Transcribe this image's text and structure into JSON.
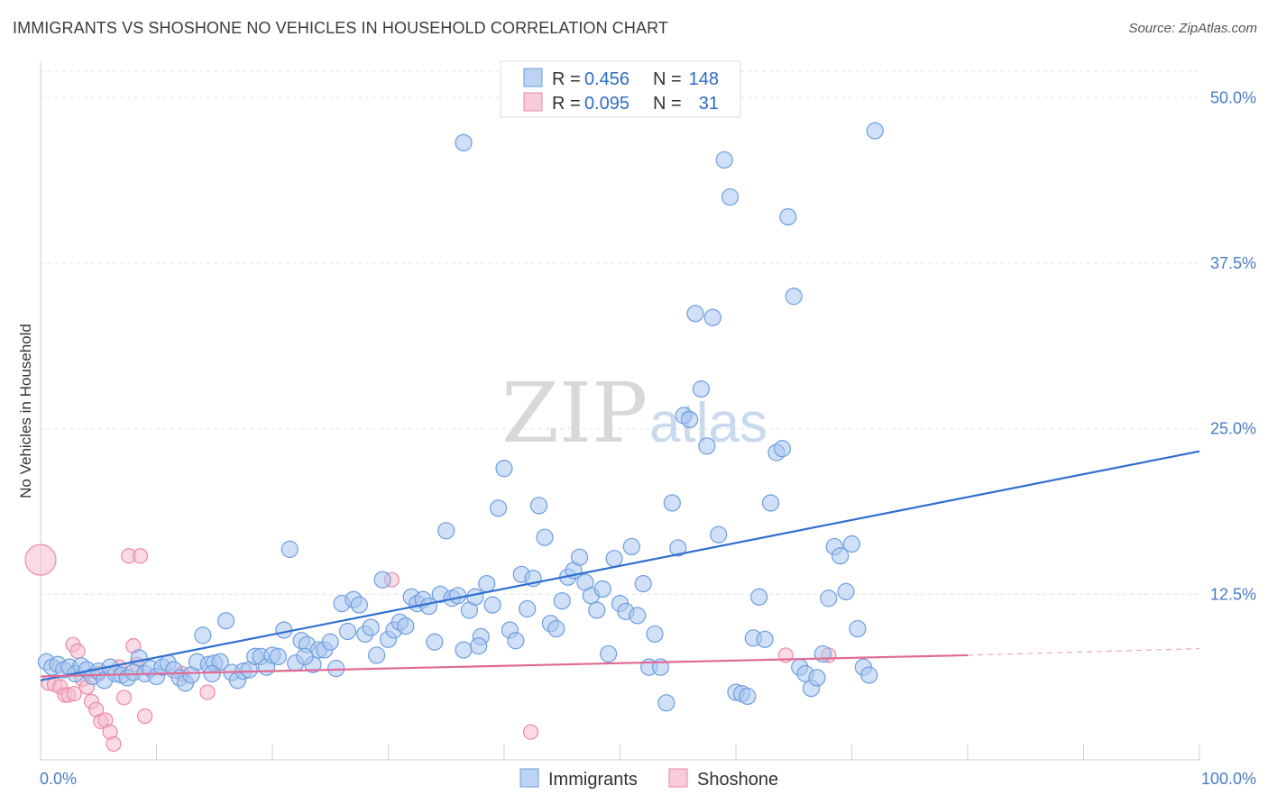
{
  "title": "IMMIGRANTS VS SHOSHONE NO VEHICLES IN HOUSEHOLD CORRELATION CHART",
  "source": "Source: ZipAtlas.com",
  "watermark": {
    "main": "ZIP",
    "sub": "atlas"
  },
  "chart_data": {
    "type": "scatter",
    "xlabel": "",
    "ylabel": "No Vehicles in Household",
    "xlim": [
      0,
      100
    ],
    "ylim": [
      0,
      52
    ],
    "x_tick_labels": [
      {
        "value": 0,
        "label": "0.0%"
      },
      {
        "value": 100,
        "label": "100.0%"
      }
    ],
    "y_ticks": [
      {
        "value": 12.5,
        "label": "12.5%"
      },
      {
        "value": 25,
        "label": "25.0%"
      },
      {
        "value": 37.5,
        "label": "37.5%"
      },
      {
        "value": 50,
        "label": "50.0%"
      }
    ],
    "grid": true,
    "legend_top": [
      {
        "series": "Immigrants",
        "r_label": "R =",
        "r": "0.456",
        "n_label": "N =",
        "n": "148"
      },
      {
        "series": "Shoshone",
        "r_label": "R =",
        "r": "0.095",
        "n_label": "N =",
        "n": "31"
      }
    ],
    "legend_bottom": [
      "Immigrants",
      "Shoshone"
    ],
    "colors": {
      "immigrants": "#a9c7ef",
      "immigrants_edge": "#6d9ee0",
      "immigrants_line": "#2f6fd0",
      "shoshone": "#f5bccd",
      "shoshone_edge": "#ea8aa8",
      "shoshone_line": "#e06a94"
    },
    "series": [
      {
        "name": "Immigrants",
        "trend": {
          "x0": 0,
          "y0": 6.0,
          "x1": 100,
          "y1": 23.3
        },
        "points": [
          [
            0.5,
            7.4
          ],
          [
            1,
            7
          ],
          [
            1.5,
            7.2
          ],
          [
            2,
            6.8
          ],
          [
            2.5,
            7
          ],
          [
            3,
            6.5
          ],
          [
            3.5,
            7.1
          ],
          [
            4,
            6.8
          ],
          [
            4.5,
            6.3
          ],
          [
            5,
            6.7
          ],
          [
            5.5,
            6
          ],
          [
            6,
            7
          ],
          [
            6.5,
            6.5
          ],
          [
            7,
            6.4
          ],
          [
            7.5,
            6.2
          ],
          [
            8,
            6.6
          ],
          [
            8.5,
            7.7
          ],
          [
            9,
            6.5
          ],
          [
            9.5,
            6.9
          ],
          [
            10,
            6.3
          ],
          [
            10.5,
            7
          ],
          [
            11,
            7.3
          ],
          [
            11.5,
            6.8
          ],
          [
            12,
            6.2
          ],
          [
            12.5,
            5.8
          ],
          [
            13,
            6.4
          ],
          [
            13.5,
            7.4
          ],
          [
            14,
            9.4
          ],
          [
            14.5,
            7.2
          ],
          [
            15,
            7.3
          ],
          [
            15.5,
            7.4
          ],
          [
            16,
            10.5
          ],
          [
            16.5,
            6.6
          ],
          [
            17,
            6
          ],
          [
            17.5,
            6.7
          ],
          [
            18,
            6.8
          ],
          [
            18.5,
            7.8
          ],
          [
            19,
            7.8
          ],
          [
            19.5,
            7
          ],
          [
            20,
            7.9
          ],
          [
            20.5,
            7.8
          ],
          [
            21,
            9.8
          ],
          [
            21.5,
            15.9
          ],
          [
            22,
            7.3
          ],
          [
            22.5,
            9
          ],
          [
            23,
            8.7
          ],
          [
            23.5,
            7.2
          ],
          [
            24,
            8.3
          ],
          [
            24.5,
            8.3
          ],
          [
            25,
            8.9
          ],
          [
            25.5,
            6.9
          ],
          [
            26,
            11.8
          ],
          [
            26.5,
            9.7
          ],
          [
            27,
            12.1
          ],
          [
            27.5,
            11.7
          ],
          [
            28,
            9.5
          ],
          [
            28.5,
            10
          ],
          [
            29,
            7.9
          ],
          [
            29.5,
            13.6
          ],
          [
            30,
            9.1
          ],
          [
            30.5,
            9.8
          ],
          [
            31,
            10.4
          ],
          [
            31.5,
            10.1
          ],
          [
            32,
            12.3
          ],
          [
            32.5,
            11.8
          ],
          [
            33,
            12.1
          ],
          [
            33.5,
            11.6
          ],
          [
            34,
            8.9
          ],
          [
            34.5,
            12.5
          ],
          [
            35,
            17.3
          ],
          [
            35.5,
            12.2
          ],
          [
            36,
            12.4
          ],
          [
            36.5,
            8.3
          ],
          [
            37,
            11.3
          ],
          [
            37.5,
            12.3
          ],
          [
            38,
            9.3
          ],
          [
            38.5,
            13.3
          ],
          [
            39,
            11.7
          ],
          [
            39.5,
            19
          ],
          [
            40,
            22
          ],
          [
            40.5,
            9.8
          ],
          [
            41,
            9
          ],
          [
            41.5,
            14
          ],
          [
            42,
            11.4
          ],
          [
            42.5,
            13.7
          ],
          [
            43,
            19.2
          ],
          [
            43.5,
            16.8
          ],
          [
            44,
            10.3
          ],
          [
            44.5,
            9.9
          ],
          [
            45,
            12
          ],
          [
            45.5,
            13.8
          ],
          [
            46,
            14.3
          ],
          [
            46.5,
            15.3
          ],
          [
            47,
            13.4
          ],
          [
            47.5,
            12.4
          ],
          [
            48,
            11.3
          ],
          [
            48.5,
            12.9
          ],
          [
            49,
            8
          ],
          [
            49.5,
            15.2
          ],
          [
            50,
            11.8
          ],
          [
            50.5,
            11.2
          ],
          [
            51,
            16.1
          ],
          [
            51.5,
            10.9
          ],
          [
            52,
            13.3
          ],
          [
            52.5,
            7
          ],
          [
            53,
            9.5
          ],
          [
            53.5,
            7
          ],
          [
            54,
            4.3
          ],
          [
            54.5,
            19.4
          ],
          [
            55,
            16
          ],
          [
            55.5,
            26
          ],
          [
            56,
            25.7
          ],
          [
            56.5,
            33.7
          ],
          [
            57,
            28
          ],
          [
            57.5,
            23.7
          ],
          [
            58,
            33.4
          ],
          [
            58.5,
            17
          ],
          [
            59,
            45.3
          ],
          [
            59.5,
            42.5
          ],
          [
            60,
            5.1
          ],
          [
            60.5,
            5
          ],
          [
            61,
            4.8
          ],
          [
            61.5,
            9.2
          ],
          [
            62,
            12.3
          ],
          [
            62.5,
            9.1
          ],
          [
            63,
            19.4
          ],
          [
            63.5,
            23.2
          ],
          [
            64,
            23.5
          ],
          [
            64.5,
            41
          ],
          [
            65,
            35
          ],
          [
            65.5,
            7
          ],
          [
            66,
            6.5
          ],
          [
            66.5,
            5.4
          ],
          [
            67,
            6.2
          ],
          [
            67.5,
            8
          ],
          [
            68,
            12.2
          ],
          [
            68.5,
            16.1
          ],
          [
            69,
            15.4
          ],
          [
            69.5,
            12.7
          ],
          [
            70,
            16.3
          ],
          [
            70.5,
            9.9
          ],
          [
            71,
            7
          ],
          [
            71.5,
            6.4
          ],
          [
            72,
            47.5
          ],
          [
            36.5,
            46.6
          ],
          [
            37.8,
            8.6
          ],
          [
            22.8,
            7.8
          ],
          [
            14.8,
            6.5
          ]
        ]
      },
      {
        "name": "Shoshone",
        "trend": {
          "x0": 0,
          "y0": 6.3,
          "x1": 80,
          "y1": 7.9,
          "dash_to": 100,
          "dash_y": 8.4
        },
        "points": [
          [
            0,
            15.1
          ],
          [
            0.7,
            5.8
          ],
          [
            1.2,
            5.7
          ],
          [
            1.7,
            5.5
          ],
          [
            2.1,
            4.9
          ],
          [
            2.4,
            4.9
          ],
          [
            2.8,
            8.7
          ],
          [
            3.2,
            8.2
          ],
          [
            3.6,
            6.1
          ],
          [
            4,
            5.5
          ],
          [
            4.4,
            4.4
          ],
          [
            4.8,
            3.8
          ],
          [
            5.2,
            2.9
          ],
          [
            5.6,
            3
          ],
          [
            6,
            2.1
          ],
          [
            6.3,
            1.2
          ],
          [
            6.8,
            7
          ],
          [
            7.2,
            4.7
          ],
          [
            7.6,
            15.4
          ],
          [
            8,
            8.6
          ],
          [
            8.6,
            15.4
          ],
          [
            9,
            3.3
          ],
          [
            12.2,
            6.5
          ],
          [
            14.4,
            5.1
          ],
          [
            30.3,
            13.6
          ],
          [
            42.3,
            2.1
          ],
          [
            64.3,
            7.9
          ],
          [
            68,
            7.9
          ],
          [
            8.3,
            7.2
          ],
          [
            5,
            6.5
          ],
          [
            2.9,
            5
          ]
        ]
      }
    ]
  }
}
